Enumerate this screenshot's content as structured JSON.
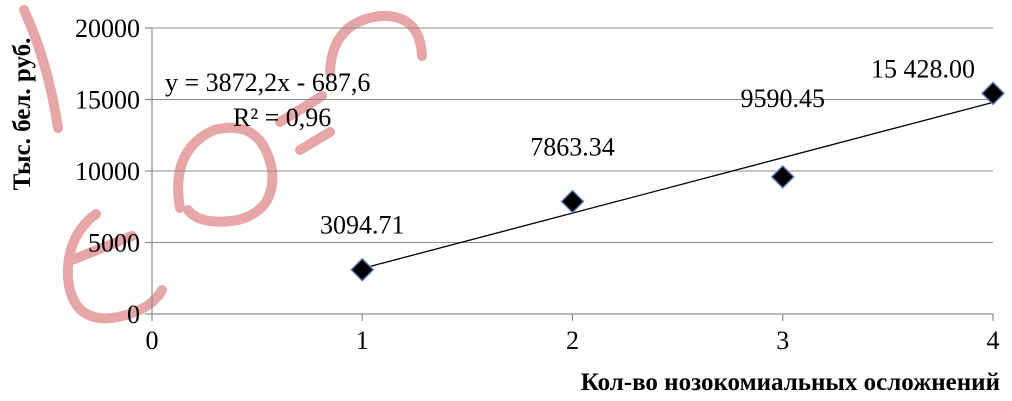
{
  "chart_data": {
    "type": "scatter",
    "x": [
      1,
      2,
      3,
      4
    ],
    "y": [
      3094.71,
      7863.34,
      9590.45,
      15428.0
    ],
    "data_labels": [
      "3094.71",
      "7863.34",
      "9590.45",
      "15 428.00"
    ],
    "xlabel": "Кол-во нозокомиальных осложнений",
    "ylabel": "Тыс. бел. руб.",
    "xlim": [
      0,
      4
    ],
    "ylim": [
      0,
      20000
    ],
    "x_ticks": [
      0,
      1,
      2,
      3,
      4
    ],
    "y_ticks": [
      0,
      5000,
      10000,
      15000,
      20000
    ],
    "grid": "horizontal",
    "marker": "diamond",
    "marker_color": "#000000",
    "trendline": {
      "type": "linear",
      "slope": 3872.2,
      "intercept": -687.6,
      "x_range": [
        1,
        4
      ],
      "equation": "y = 3872,2x - 687,6",
      "r_squared": "R² = 0,96"
    },
    "legend": "none"
  },
  "watermark": {
    "color": "#e6a6a8"
  }
}
